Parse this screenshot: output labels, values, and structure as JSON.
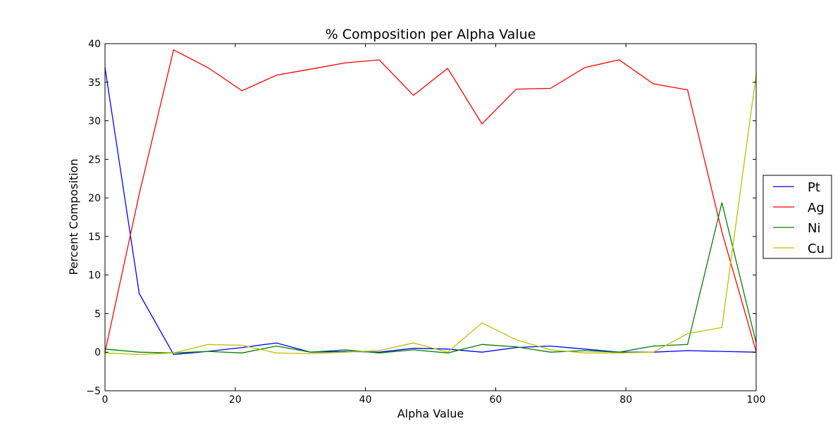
{
  "chart_data": {
    "type": "line",
    "title": "% Composition per Alpha Value",
    "xlabel": "Alpha Value",
    "ylabel": "Percent Composition",
    "xlim": [
      0,
      100
    ],
    "ylim": [
      -5,
      40
    ],
    "xticks": [
      0,
      20,
      40,
      60,
      80,
      100
    ],
    "yticks": [
      -5,
      0,
      5,
      10,
      15,
      20,
      25,
      30,
      35,
      40
    ],
    "grid": false,
    "legend_position": "right",
    "x": [
      0,
      5.26,
      10.53,
      15.79,
      21.05,
      26.32,
      31.58,
      36.84,
      42.11,
      47.37,
      52.63,
      57.89,
      63.16,
      68.42,
      73.68,
      78.95,
      84.21,
      89.47,
      94.74,
      100
    ],
    "series": [
      {
        "name": "Pt",
        "color": "#0000ff",
        "values": [
          36.9,
          7.6,
          -0.3,
          0.1,
          0.6,
          1.2,
          0.0,
          0.1,
          0.0,
          0.5,
          0.4,
          0.0,
          0.6,
          0.8,
          0.4,
          0.0,
          0.0,
          0.2,
          0.1,
          0.0
        ]
      },
      {
        "name": "Ag",
        "color": "#ff0000",
        "values": [
          0.0,
          20.5,
          39.2,
          36.9,
          33.9,
          35.9,
          36.7,
          37.5,
          37.9,
          33.3,
          36.8,
          29.6,
          34.1,
          34.2,
          36.9,
          37.9,
          34.8,
          34.0,
          15.6,
          0.1
        ]
      },
      {
        "name": "Ni",
        "color": "#008000",
        "values": [
          0.4,
          0.0,
          -0.1,
          0.1,
          -0.1,
          0.8,
          0.0,
          0.3,
          -0.1,
          0.3,
          -0.1,
          1.0,
          0.7,
          0.0,
          0.2,
          0.0,
          0.8,
          1.0,
          19.4,
          1.2
        ]
      },
      {
        "name": "Cu",
        "color": "#bfbf00",
        "values": [
          -0.1,
          -0.3,
          -0.1,
          1.0,
          0.9,
          -0.1,
          -0.2,
          0.0,
          0.2,
          1.2,
          0.0,
          3.8,
          1.6,
          0.3,
          -0.1,
          -0.1,
          0.0,
          2.4,
          3.2,
          36.0
        ]
      }
    ]
  }
}
